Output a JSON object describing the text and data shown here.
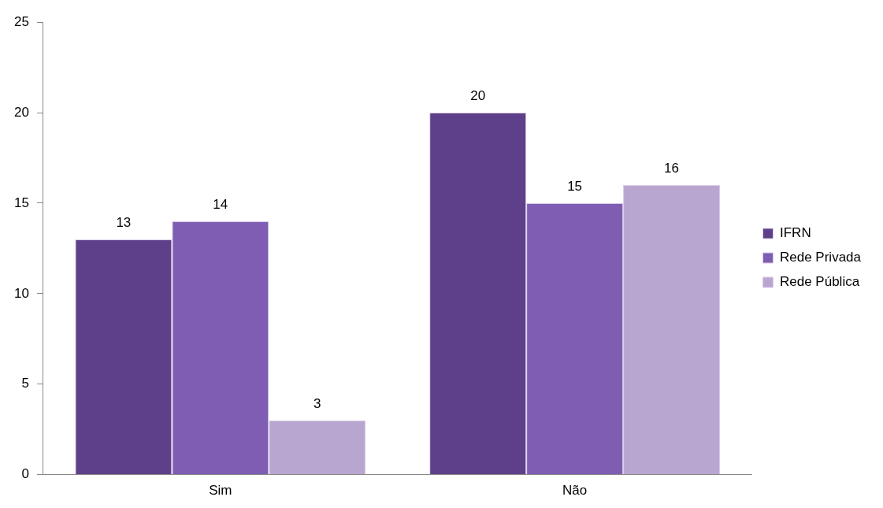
{
  "chart_data": {
    "type": "bar",
    "categories": [
      "Sim",
      "Não"
    ],
    "series": [
      {
        "name": "IFRN",
        "color": "#5e3f8a",
        "values": [
          13,
          20
        ]
      },
      {
        "name": "Rede Privada",
        "color": "#7e5db3",
        "values": [
          14,
          15
        ]
      },
      {
        "name": "Rede Pública",
        "color": "#b9a6d0",
        "values": [
          3,
          16
        ]
      }
    ],
    "ylim": [
      0,
      25
    ],
    "yticks": [
      0,
      5,
      10,
      15,
      20,
      25
    ],
    "grid": false,
    "legend": "right",
    "data_labels": true
  }
}
